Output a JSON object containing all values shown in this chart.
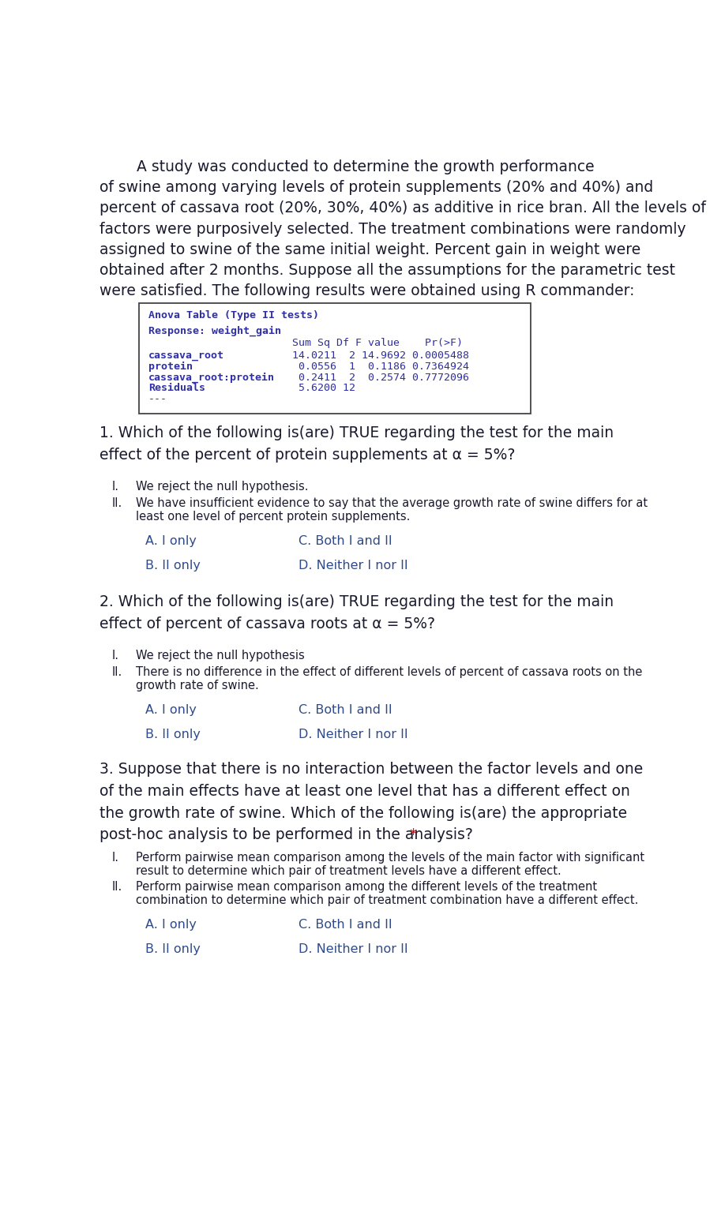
{
  "bg_color": "#ffffff",
  "text_color_dark": "#1a1a2e",
  "monospace_color": "#2e2ea8",
  "text_color_choice": "#2e4a8a",
  "text_color_red": "#cc0000",
  "intro_line1": "A study was conducted to determine the growth performance",
  "intro_rest": "of swine among varying levels of protein supplements (20% and 40%) and\npercent of cassava root (20%, 30%, 40%) as additive in rice bran. All the levels of\nfactors were purposively selected. The treatment combinations were randomly\nassigned to swine of the same initial weight. Percent gain in weight were\nobtained after 2 months. Suppose all the assumptions for the parametric test\nwere satisfied. The following results were obtained using R commander:",
  "q1_text_line1": "1. Which of the following is(are) TRUE regarding the test for the main",
  "q1_text_line2": "effect of the percent of protein supplements at α = 5%?",
  "q1_i": "We reject the null hypothesis.",
  "q1_ii_line1": "We have insufficient evidence to say that the average growth rate of swine differs for at",
  "q1_ii_line2": "least one level of percent protein supplements.",
  "q2_text_line1": "2. Which of the following is(are) TRUE regarding the test for the main",
  "q2_text_line2": "effect of percent of cassava roots at α = 5%?",
  "q2_i": "We reject the null hypothesis",
  "q2_ii_line1": "There is no difference in the effect of different levels of percent of cassava roots on the",
  "q2_ii_line2": "growth rate of swine.",
  "q3_text_line1": "3. Suppose that there is no interaction between the factor levels and one",
  "q3_text_line2": "of the main effects have at least one level that has a different effect on",
  "q3_text_line3": "the growth rate of swine. Which of the following is(are) the appropriate",
  "q3_text_line4": "post-hoc analysis to be performed in the analysis?",
  "q3_star": " *",
  "q3_i_line1": "Perform pairwise mean comparison among the levels of the main factor with significant",
  "q3_i_line2": "result to determine which pair of treatment levels have a different effect.",
  "q3_ii_line1": "Perform pairwise mean comparison among the different levels of the treatment",
  "q3_ii_line2": "combination to determine which pair of treatment combination have a different effect.",
  "choice_A": "A. I only",
  "choice_B": "B. II only",
  "choice_C": "C. Both I and II",
  "choice_D": "D. Neither I nor II"
}
